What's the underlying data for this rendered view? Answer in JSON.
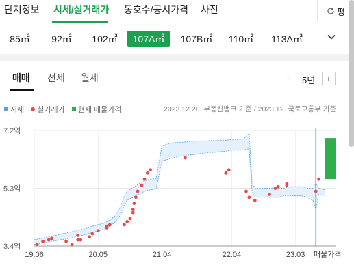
{
  "topnav": {
    "tabs": [
      {
        "label": "단지정보",
        "active": false
      },
      {
        "label": "시세/실거래가",
        "active": true
      },
      {
        "label": "동호수/공시가격",
        "active": false
      },
      {
        "label": "사진",
        "active": false
      }
    ],
    "right_label": "평",
    "right_icon": "refresh-icon"
  },
  "areas": {
    "items": [
      "85㎡",
      "92㎡",
      "102㎡",
      "107A㎡",
      "107B㎡",
      "110㎡",
      "113A㎡"
    ],
    "selected_index": 3,
    "expand_icon": "chevron-down-icon"
  },
  "trade_tabs": {
    "items": [
      "매매",
      "전세",
      "월세"
    ],
    "active_index": 0
  },
  "period": {
    "minus": "−",
    "value": "5년",
    "plus": "+"
  },
  "legend": {
    "items": [
      {
        "label": "시세",
        "color": "#5aa0e0",
        "shape": "square"
      },
      {
        "label": "실거래가",
        "color": "#e84a4a",
        "shape": "dot"
      },
      {
        "label": "현재 매물가격",
        "color": "#2eae4e",
        "shape": "square"
      }
    ],
    "source": "2023.12.20. 부동산뱅크 기준 / 2023.12. 국토교통부 기준"
  },
  "chart_data": {
    "type": "line",
    "y_unit": "억",
    "y_ticks": [
      "7.2억",
      "5.3억",
      "3.4억"
    ],
    "ylim": [
      3.4,
      7.2
    ],
    "x_ticks": [
      "19.06",
      "20.05",
      "21.04",
      "22.04",
      "23.03",
      "매물가격"
    ],
    "x_tick_pos": [
      0,
      11,
      22,
      34,
      45,
      50.5
    ],
    "grid": true,
    "price_band": {
      "x": [
        0,
        3,
        6,
        9,
        10,
        11,
        12,
        13,
        14,
        15,
        15.5,
        16,
        17,
        18,
        19,
        20,
        21,
        22,
        23,
        24,
        25,
        26,
        27,
        28,
        29,
        30,
        31,
        32,
        33,
        34,
        35,
        36,
        37,
        37.5,
        38,
        39,
        40,
        41,
        42,
        43,
        44,
        45,
        46,
        47,
        48,
        48.5,
        49,
        50
      ],
      "upper": [
        3.6,
        3.72,
        3.85,
        3.98,
        4.05,
        4.1,
        4.15,
        4.25,
        4.4,
        4.75,
        5.05,
        5.2,
        5.32,
        5.45,
        5.55,
        5.6,
        5.62,
        6.7,
        6.76,
        6.8,
        6.8,
        6.82,
        6.84,
        6.85,
        6.85,
        6.86,
        6.87,
        6.88,
        6.88,
        6.9,
        6.9,
        6.92,
        7.1,
        5.5,
        5.3,
        5.3,
        5.3,
        5.3,
        5.3,
        5.3,
        5.35,
        5.35,
        5.35,
        5.3,
        5.3,
        5.45,
        5.3,
        5.25
      ],
      "lower": [
        3.45,
        3.55,
        3.65,
        3.78,
        3.85,
        3.9,
        3.95,
        4.05,
        4.2,
        4.45,
        4.75,
        4.9,
        5.0,
        5.1,
        5.2,
        5.25,
        5.28,
        6.2,
        6.25,
        6.3,
        6.35,
        6.38,
        6.4,
        6.42,
        6.45,
        6.47,
        6.48,
        6.5,
        6.52,
        6.55,
        6.55,
        6.56,
        6.6,
        5.2,
        5.0,
        5.0,
        5.0,
        5.0,
        5.0,
        5.05,
        5.05,
        5.05,
        5.05,
        5.0,
        4.9,
        4.6,
        5.1,
        5.05
      ]
    },
    "transactions": {
      "x": [
        0.5,
        1.5,
        2.5,
        3.0,
        5.5,
        6.5,
        7.5,
        7.5,
        8.0,
        9.5,
        10.0,
        11.0,
        12.5,
        12.5,
        13.0,
        15.5,
        16.0,
        16.5,
        17.0,
        17.0,
        17.2,
        17.5,
        17.8,
        18.5,
        19.0,
        19.5,
        20.0,
        26.0,
        33.0,
        33.5,
        36.5,
        37.0,
        38.0,
        40.5,
        41.5,
        42.0,
        43.5,
        43.5,
        48.5,
        49.0
      ],
      "y": [
        3.45,
        3.55,
        3.6,
        3.65,
        3.55,
        3.45,
        3.6,
        3.75,
        3.6,
        3.7,
        3.8,
        3.9,
        4.0,
        4.05,
        4.1,
        4.1,
        4.2,
        4.3,
        4.5,
        4.6,
        4.8,
        5.0,
        5.2,
        5.4,
        5.6,
        5.8,
        5.9,
        6.3,
        5.8,
        5.9,
        5.2,
        5.0,
        4.9,
        5.1,
        5.3,
        5.35,
        5.45,
        5.4,
        5.2,
        5.6
      ]
    },
    "listing_range": [
      5.6,
      6.95
    ],
    "listing_x": 51
  },
  "colors": {
    "accent": "#1aa251",
    "band_fill": "#e4f0fc",
    "band_line": "#6ab0ea",
    "dot": "#e84a4a",
    "listing": "#2eae4e",
    "cursor": "#27a85a"
  }
}
